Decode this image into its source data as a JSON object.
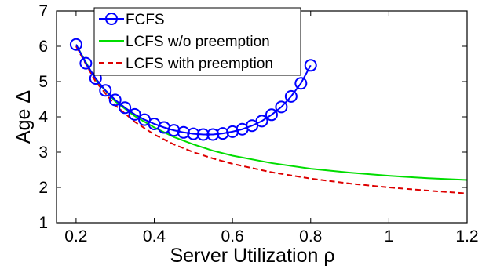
{
  "chart_data": {
    "type": "line",
    "title": "",
    "xlabel": "Server Utilization ρ",
    "ylabel": "Age Δ",
    "xlim": [
      0.15,
      1.2
    ],
    "ylim": [
      1,
      7
    ],
    "xticks": [
      0.2,
      0.4,
      0.6,
      0.8,
      1,
      1.2
    ],
    "xtick_labels": [
      "0.2",
      "0.4",
      "0.6",
      "0.8",
      "1",
      "1.2"
    ],
    "yticks": [
      1,
      2,
      3,
      4,
      5,
      6,
      7
    ],
    "ytick_labels": [
      "1",
      "2",
      "3",
      "4",
      "5",
      "6",
      "7"
    ],
    "grid": false,
    "legend_position": "top-center",
    "series": [
      {
        "name": "FCFS",
        "color": "#0000ff",
        "style": "solid",
        "marker": "circle",
        "x": [
          0.2,
          0.225,
          0.25,
          0.275,
          0.3,
          0.325,
          0.35,
          0.375,
          0.4,
          0.425,
          0.45,
          0.475,
          0.5,
          0.525,
          0.55,
          0.575,
          0.6,
          0.625,
          0.65,
          0.675,
          0.7,
          0.725,
          0.75,
          0.775,
          0.8
        ],
        "y": [
          6.05,
          5.52,
          5.09,
          4.75,
          4.48,
          4.26,
          4.07,
          3.92,
          3.8,
          3.7,
          3.62,
          3.56,
          3.52,
          3.5,
          3.5,
          3.53,
          3.58,
          3.65,
          3.75,
          3.88,
          4.06,
          4.28,
          4.58,
          4.95,
          5.46
        ]
      },
      {
        "name": "LCFS w/o preemption",
        "color": "#00dd00",
        "style": "solid",
        "marker": "none",
        "x": [
          0.2,
          0.25,
          0.3,
          0.35,
          0.4,
          0.45,
          0.5,
          0.55,
          0.6,
          0.7,
          0.8,
          0.9,
          1.0,
          1.1,
          1.2
        ],
        "y": [
          6.05,
          5.05,
          4.44,
          4.02,
          3.7,
          3.43,
          3.22,
          3.04,
          2.9,
          2.69,
          2.53,
          2.42,
          2.33,
          2.26,
          2.21
        ]
      },
      {
        "name": "LCFS with preemption",
        "color": "#dd0000",
        "style": "dashed",
        "marker": "none",
        "x": [
          0.2,
          0.25,
          0.3,
          0.35,
          0.4,
          0.45,
          0.5,
          0.55,
          0.6,
          0.7,
          0.8,
          0.9,
          1.0,
          1.1,
          1.2
        ],
        "y": [
          6.0,
          5.0,
          4.33,
          3.86,
          3.5,
          3.22,
          3.0,
          2.82,
          2.67,
          2.43,
          2.25,
          2.11,
          2.0,
          1.91,
          1.83
        ]
      }
    ]
  }
}
